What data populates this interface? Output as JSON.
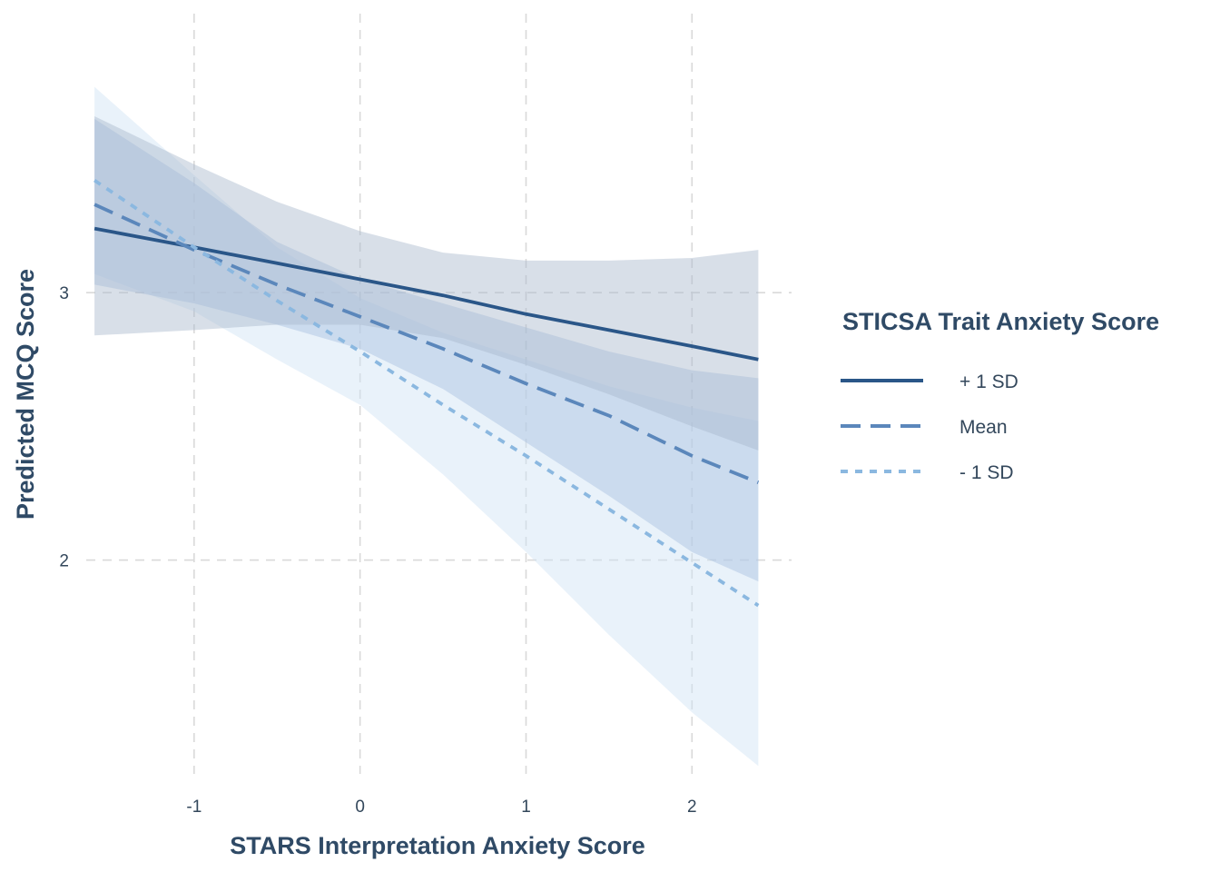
{
  "chart_data": {
    "type": "line",
    "title": "",
    "xlabel": "STARS Interpretation Anxiety Score",
    "ylabel": "Predicted MCQ Score",
    "xlim": [
      -1.65,
      2.6
    ],
    "ylim": [
      1.2,
      4.02
    ],
    "x_ticks": [
      -1,
      0,
      1,
      2
    ],
    "x_tick_labels": [
      "-1",
      "0",
      "1",
      "2"
    ],
    "y_ticks": [
      2,
      3
    ],
    "y_tick_labels": [
      "2",
      "3"
    ],
    "grid": true,
    "grid_style": "dashed",
    "legend": {
      "title": "STICSA Trait Anxiety Score",
      "placement": "right"
    },
    "x": [
      -1.6,
      -1.0,
      -0.5,
      0.0,
      0.5,
      1.0,
      1.5,
      2.0,
      2.4
    ],
    "series": [
      {
        "name": "+ 1 SD",
        "color": "#2a5688",
        "dash": "solid",
        "band_color": "#a8b9cc",
        "values": [
          3.24,
          3.17,
          3.11,
          3.05,
          2.99,
          2.92,
          2.86,
          2.8,
          2.75
        ],
        "lower": [
          2.84,
          2.86,
          2.88,
          2.88,
          2.83,
          2.73,
          2.62,
          2.5,
          2.41
        ],
        "upper": [
          3.66,
          3.48,
          3.34,
          3.23,
          3.15,
          3.12,
          3.12,
          3.13,
          3.16
        ]
      },
      {
        "name": "Mean",
        "color": "#5b87bb",
        "dash": "dashed",
        "band_color": "#a6bee0",
        "values": [
          3.33,
          3.16,
          3.03,
          2.91,
          2.79,
          2.66,
          2.54,
          2.39,
          2.29
        ],
        "lower": [
          3.03,
          2.96,
          2.88,
          2.79,
          2.64,
          2.44,
          2.24,
          2.03,
          1.92
        ],
        "upper": [
          3.65,
          3.41,
          3.19,
          3.05,
          2.96,
          2.87,
          2.78,
          2.71,
          2.68
        ]
      },
      {
        "name": "- 1 SD",
        "color": "#8bb8e0",
        "dash": "dotted",
        "band_color": "#cfe2f4",
        "values": [
          3.42,
          3.17,
          2.97,
          2.78,
          2.58,
          2.39,
          2.19,
          1.99,
          1.83
        ],
        "lower": [
          3.07,
          2.93,
          2.75,
          2.58,
          2.32,
          2.03,
          1.72,
          1.43,
          1.23
        ],
        "upper": [
          3.77,
          3.44,
          3.17,
          2.98,
          2.85,
          2.75,
          2.65,
          2.57,
          2.52
        ]
      }
    ]
  }
}
